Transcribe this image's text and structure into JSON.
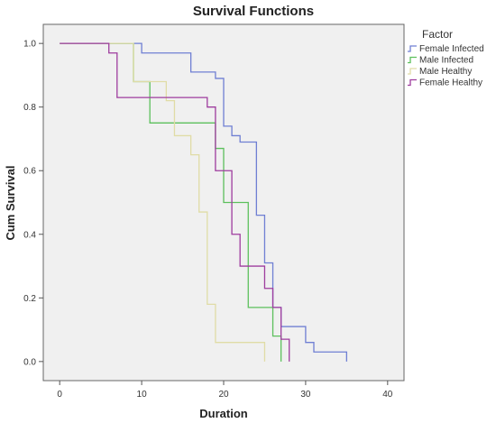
{
  "chart_data": {
    "type": "line",
    "title": "Survival Functions",
    "xlabel": "Duration",
    "ylabel": "Cum Survival",
    "xlim": [
      -2,
      42
    ],
    "ylim": [
      -0.06,
      1.06
    ],
    "xticks": [
      "0",
      "10",
      "20",
      "30",
      "40"
    ],
    "yticks": [
      "0.0",
      "0.2",
      "0.4",
      "0.6",
      "0.8",
      "1.0"
    ],
    "legend_title": "Factor",
    "legend_position": "top-right (outside plot)",
    "grid": false,
    "plot_background": "#f0f0f0",
    "series": [
      {
        "name": "Female Infected",
        "color": "#6f7fd3",
        "step": [
          [
            0,
            1.0
          ],
          [
            10,
            1.0
          ],
          [
            10,
            0.97
          ],
          [
            16,
            0.97
          ],
          [
            16,
            0.91
          ],
          [
            19,
            0.91
          ],
          [
            19,
            0.89
          ],
          [
            20,
            0.89
          ],
          [
            20,
            0.74
          ],
          [
            21,
            0.74
          ],
          [
            21,
            0.71
          ],
          [
            22,
            0.71
          ],
          [
            22,
            0.69
          ],
          [
            24,
            0.69
          ],
          [
            24,
            0.46
          ],
          [
            25,
            0.46
          ],
          [
            25,
            0.31
          ],
          [
            26,
            0.31
          ],
          [
            26,
            0.17
          ],
          [
            27,
            0.17
          ],
          [
            27,
            0.11
          ],
          [
            30,
            0.11
          ],
          [
            30,
            0.06
          ],
          [
            31,
            0.06
          ],
          [
            31,
            0.03
          ],
          [
            35,
            0.03
          ],
          [
            35,
            0.0
          ]
        ]
      },
      {
        "name": "Male Infected",
        "color": "#5cc05c",
        "step": [
          [
            0,
            1.0
          ],
          [
            9,
            1.0
          ],
          [
            9,
            0.88
          ],
          [
            11,
            0.88
          ],
          [
            11,
            0.75
          ],
          [
            19,
            0.75
          ],
          [
            19,
            0.67
          ],
          [
            20,
            0.67
          ],
          [
            20,
            0.5
          ],
          [
            23,
            0.5
          ],
          [
            23,
            0.17
          ],
          [
            26,
            0.17
          ],
          [
            26,
            0.08
          ],
          [
            27,
            0.08
          ],
          [
            27,
            0.0
          ]
        ]
      },
      {
        "name": "Male Healthy",
        "color": "#e0dca6",
        "step": [
          [
            0,
            1.0
          ],
          [
            8,
            1.0
          ],
          [
            8,
            1.0
          ],
          [
            9,
            1.0
          ],
          [
            9,
            0.88
          ],
          [
            13,
            0.88
          ],
          [
            13,
            0.82
          ],
          [
            14,
            0.82
          ],
          [
            14,
            0.71
          ],
          [
            16,
            0.71
          ],
          [
            16,
            0.65
          ],
          [
            17,
            0.65
          ],
          [
            17,
            0.47
          ],
          [
            18,
            0.47
          ],
          [
            18,
            0.18
          ],
          [
            19,
            0.18
          ],
          [
            19,
            0.06
          ],
          [
            25,
            0.06
          ],
          [
            25,
            0.0
          ]
        ]
      },
      {
        "name": "Female Healthy",
        "color": "#9e3c9e",
        "step": [
          [
            0,
            1.0
          ],
          [
            6,
            1.0
          ],
          [
            6,
            0.97
          ],
          [
            7,
            0.97
          ],
          [
            7,
            0.83
          ],
          [
            18,
            0.83
          ],
          [
            18,
            0.8
          ],
          [
            19,
            0.8
          ],
          [
            19,
            0.6
          ],
          [
            21,
            0.6
          ],
          [
            21,
            0.4
          ],
          [
            22,
            0.4
          ],
          [
            22,
            0.3
          ],
          [
            25,
            0.3
          ],
          [
            25,
            0.23
          ],
          [
            26,
            0.23
          ],
          [
            26,
            0.17
          ],
          [
            27,
            0.17
          ],
          [
            27,
            0.07
          ],
          [
            28,
            0.07
          ],
          [
            28,
            0.0
          ]
        ]
      }
    ]
  }
}
